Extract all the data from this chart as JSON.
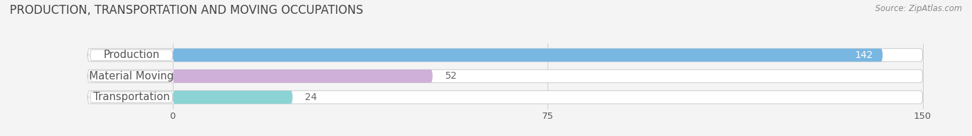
{
  "title": "PRODUCTION, TRANSPORTATION AND MOVING OCCUPATIONS",
  "source": "Source: ZipAtlas.com",
  "categories": [
    "Production",
    "Material Moving",
    "Transportation"
  ],
  "values": [
    142,
    52,
    24
  ],
  "bar_colors": [
    "#6aafe0",
    "#c9a8d4",
    "#7ecfd0"
  ],
  "value_label_colors": [
    "white",
    "#666666",
    "#666666"
  ],
  "xlim": [
    -18,
    155
  ],
  "xticks": [
    0,
    75,
    150
  ],
  "bar_height": 0.62,
  "background_color": "#f4f4f4",
  "title_fontsize": 12,
  "label_fontsize": 11,
  "value_fontsize": 10
}
